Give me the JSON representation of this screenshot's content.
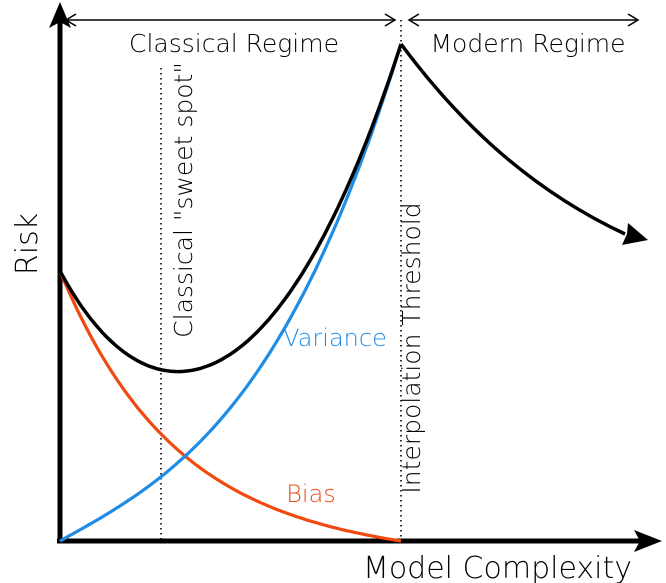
{
  "diagram": {
    "labels": {
      "y_axis": "Risk",
      "x_axis": "Model Complexity",
      "classical_regime": "Classical Regime",
      "modern_regime": "Modern Regime",
      "sweet_spot": "Classical \"sweet spot\"",
      "interpolation_threshold": "Interpolation Threshold",
      "variance": "Variance",
      "bias": "Bias"
    },
    "colors": {
      "risk": "#000000",
      "variance": "#1f8ce6",
      "bias": "#f04a10",
      "axis": "#000000"
    }
  }
}
